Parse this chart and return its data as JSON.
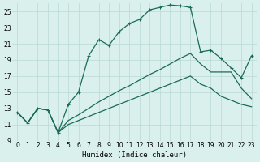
{
  "xlabel": "Humidex (Indice chaleur)",
  "xlim": [
    -0.5,
    23.5
  ],
  "ylim": [
    9,
    26
  ],
  "xticks": [
    0,
    1,
    2,
    3,
    4,
    5,
    6,
    7,
    8,
    9,
    10,
    11,
    12,
    13,
    14,
    15,
    16,
    17,
    18,
    19,
    20,
    21,
    22,
    23
  ],
  "yticks": [
    9,
    11,
    13,
    15,
    17,
    19,
    21,
    23,
    25
  ],
  "bg_color": "#d9f0ed",
  "grid_color": "#b8d8d4",
  "line_color": "#1a6b5a",
  "main_x": [
    0,
    1,
    2,
    3,
    4,
    5,
    6,
    7,
    8,
    9,
    10,
    11,
    12,
    13,
    14,
    15,
    16,
    17,
    18,
    19,
    20,
    21,
    22,
    23
  ],
  "main_y": [
    12.5,
    11.2,
    13.0,
    12.8,
    10.0,
    13.5,
    15.0,
    19.5,
    21.5,
    20.8,
    22.5,
    23.5,
    24.0,
    25.2,
    25.5,
    25.8,
    25.7,
    25.5,
    20.0,
    20.2,
    19.2,
    18.0,
    16.8,
    19.5
  ],
  "line2_x": [
    0,
    1,
    2,
    3,
    4,
    5,
    6,
    7,
    8,
    9,
    10,
    11,
    12,
    13,
    14,
    15,
    16,
    17,
    18,
    19,
    20,
    21,
    22,
    23
  ],
  "line2_y": [
    12.5,
    11.2,
    13.0,
    12.8,
    10.0,
    11.5,
    12.2,
    13.0,
    13.8,
    14.5,
    15.2,
    15.8,
    16.5,
    17.2,
    17.8,
    18.5,
    19.2,
    19.8,
    18.5,
    17.5,
    17.5,
    17.5,
    15.5,
    14.2
  ],
  "line3_x": [
    0,
    1,
    2,
    3,
    4,
    5,
    6,
    7,
    8,
    9,
    10,
    11,
    12,
    13,
    14,
    15,
    16,
    17,
    18,
    19,
    20,
    21,
    22,
    23
  ],
  "line3_y": [
    12.5,
    11.2,
    13.0,
    12.8,
    10.0,
    11.0,
    11.5,
    12.0,
    12.5,
    13.0,
    13.5,
    14.0,
    14.5,
    15.0,
    15.5,
    16.0,
    16.5,
    17.0,
    16.0,
    15.5,
    14.5,
    14.0,
    13.5,
    13.2
  ]
}
